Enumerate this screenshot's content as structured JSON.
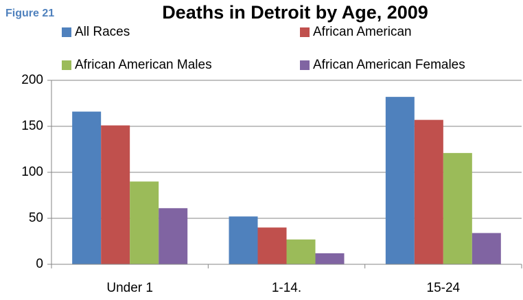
{
  "chart_data": {
    "type": "bar",
    "figure_label": "Figure 21",
    "title": "Deaths in Detroit by Age, 2009",
    "categories": [
      "Under 1",
      "1-14.",
      "15-24"
    ],
    "series": [
      {
        "name": "All Races",
        "color": "#4f81bd",
        "values": [
          166,
          52,
          182
        ]
      },
      {
        "name": "African American",
        "color": "#c0504d",
        "values": [
          151,
          40,
          157
        ]
      },
      {
        "name": "African American Males",
        "color": "#9bbb59",
        "values": [
          90,
          27,
          121
        ]
      },
      {
        "name": "African American Females",
        "color": "#8064a2",
        "values": [
          61,
          12,
          34
        ]
      }
    ],
    "ylim": [
      0,
      200
    ],
    "yticks": [
      0,
      50,
      100,
      150,
      200
    ],
    "grid": true
  }
}
